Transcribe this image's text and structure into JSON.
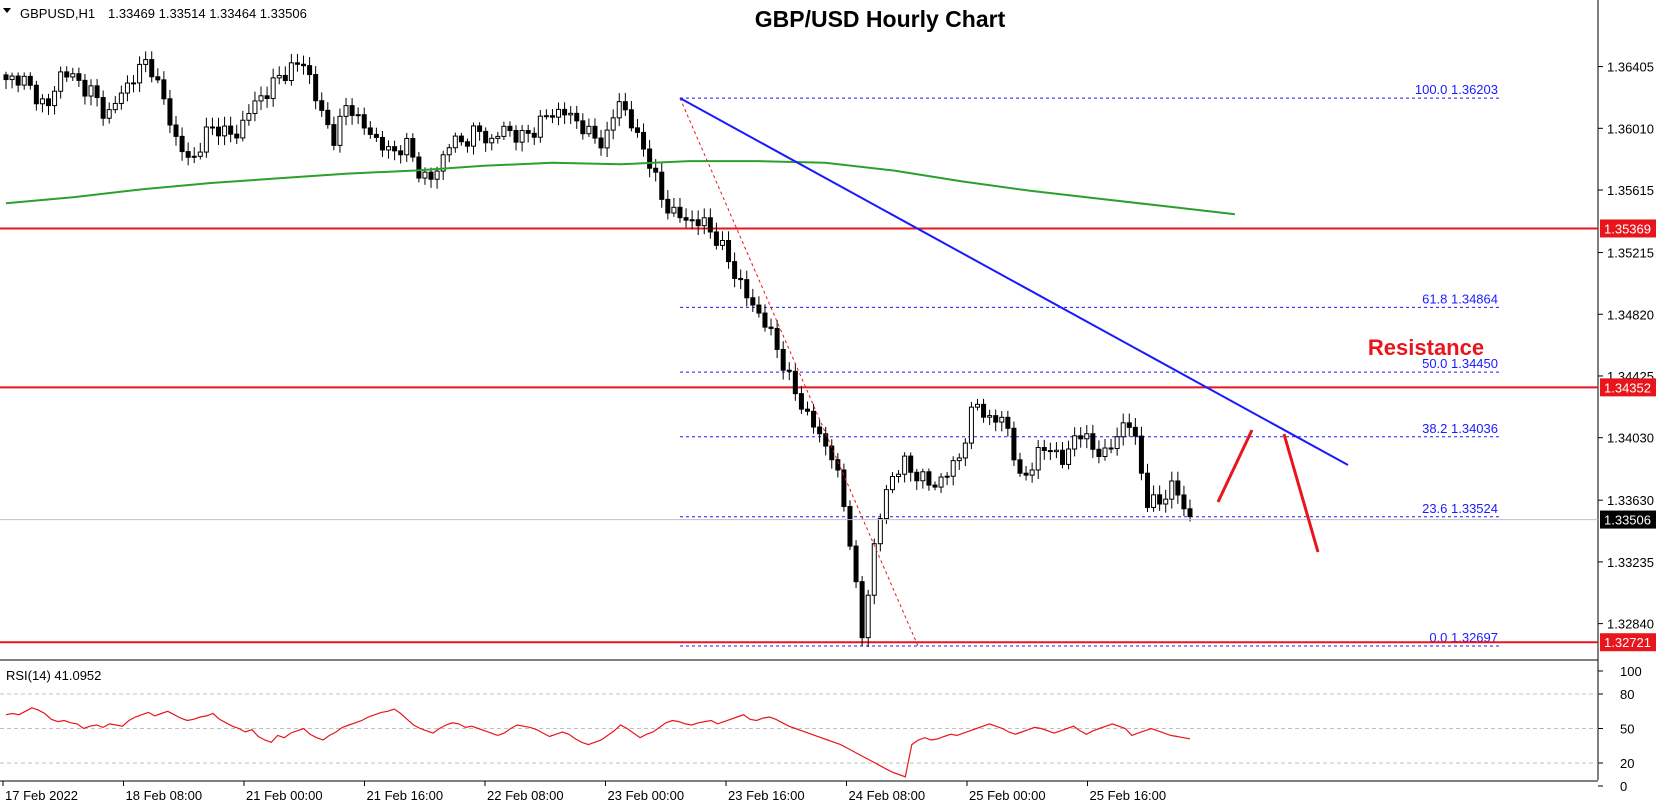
{
  "header": {
    "symbol": "GBPUSD,H1",
    "ohlc": "1.33469 1.33514 1.33464 1.33506",
    "title": "GBP/USD Hourly Chart"
  },
  "chart_data": [
    {
      "type": "candlestick",
      "title": "GBP/USD Hourly Chart",
      "symbol": "GBPUSD",
      "timeframe": "H1",
      "ohlc_last": {
        "open": 1.33469,
        "high": 1.33514,
        "low": 1.33464,
        "close": 1.33506
      },
      "ylim": [
        1.3262,
        1.3678
      ],
      "y_ticks": [
        "1.36405",
        "1.36010",
        "1.35615",
        "1.35215",
        "1.34820",
        "1.34425",
        "1.34030",
        "1.33630",
        "1.33235",
        "1.32840"
      ],
      "x_ticks": [
        "17 Feb 2022",
        "18 Feb 08:00",
        "21 Feb 00:00",
        "21 Feb 16:00",
        "22 Feb 08:00",
        "23 Feb 00:00",
        "23 Feb 16:00",
        "24 Feb 08:00",
        "25 Feb 00:00",
        "25 Feb 16:00"
      ],
      "close_path": [
        1.363,
        1.3635,
        1.3622,
        1.3615,
        1.364,
        1.363,
        1.3625,
        1.3608,
        1.3622,
        1.3635,
        1.3645,
        1.362,
        1.3592,
        1.3578,
        1.3598,
        1.3602,
        1.3594,
        1.3612,
        1.3622,
        1.3632,
        1.364,
        1.3643,
        1.3612,
        1.3595,
        1.3618,
        1.3602,
        1.3594,
        1.3584,
        1.3592,
        1.3572,
        1.3568,
        1.3592,
        1.3592,
        1.36,
        1.3592,
        1.3602,
        1.3594,
        1.36,
        1.361,
        1.3612,
        1.3606,
        1.3596,
        1.3592,
        1.362,
        1.36,
        1.3583,
        1.3555,
        1.3545,
        1.3542,
        1.354,
        1.3528,
        1.351,
        1.3492,
        1.348,
        1.3462,
        1.3438,
        1.342,
        1.3405,
        1.339,
        1.335,
        1.3275,
        1.3342,
        1.3378,
        1.3386,
        1.3378,
        1.3372,
        1.338,
        1.3394,
        1.3428,
        1.3412,
        1.3418,
        1.3376,
        1.3386,
        1.34,
        1.3386,
        1.3406,
        1.34,
        1.339,
        1.3408,
        1.3412,
        1.336,
        1.3364,
        1.3372,
        1.335
      ],
      "candle_count": 196,
      "ma": {
        "name": "",
        "color": "#2ca02c",
        "values": [
          1.3553,
          1.3557,
          1.3562,
          1.3566,
          1.3569,
          1.3572,
          1.3574,
          1.3577,
          1.3579,
          1.3578,
          1.358,
          1.358,
          1.3579,
          1.3574,
          1.3567,
          1.3561,
          1.3556,
          1.3551,
          1.3546
        ]
      },
      "horizontal_levels": [
        {
          "value": 1.35369,
          "color": "#e8161c"
        },
        {
          "value": 1.34352,
          "color": "#e8161c"
        },
        {
          "value": 1.32721,
          "color": "#e8161c"
        }
      ],
      "current_price": 1.33506,
      "trendline": {
        "from": 1.36203,
        "to": 1.33855,
        "color": "#1a1aff"
      },
      "fibonacci": {
        "high": 1.36203,
        "low": 1.32697,
        "color": "#1a1aff",
        "levels": [
          {
            "label": "100.0 1.36203",
            "value": 1.36203
          },
          {
            "label": "61.8 1.34864",
            "value": 1.34864
          },
          {
            "label": "50.0 1.34450",
            "value": 1.3445
          },
          {
            "label": "38.2 1.34036",
            "value": 1.34036
          },
          {
            "label": "23.6 1.33524",
            "value": 1.33524
          },
          {
            "label": "0.0 1.32697",
            "value": 1.32697
          }
        ]
      },
      "annotation": "Resistance",
      "projection_color": "#e8161c",
      "grid": false
    },
    {
      "type": "line",
      "indicator": "RSI(14)",
      "label": "RSI(14) 41.0952",
      "value": 41.0952,
      "ylim": [
        0,
        100
      ],
      "y_ticks": [
        "100",
        "80",
        "50",
        "20",
        "0"
      ],
      "levels": [
        80,
        50,
        20
      ],
      "color": "#e8161c",
      "values": [
        62,
        63,
        62,
        65,
        68,
        66,
        63,
        58,
        56,
        57,
        55,
        54,
        50,
        52,
        53,
        51,
        54,
        53,
        52,
        57,
        60,
        62,
        64,
        61,
        63,
        65,
        62,
        59,
        57,
        58,
        60,
        61,
        63,
        58,
        55,
        52,
        50,
        47,
        49,
        43,
        40,
        38,
        44,
        42,
        46,
        48,
        50,
        45,
        42,
        40,
        44,
        47,
        51,
        53,
        55,
        57,
        60,
        62,
        64,
        65,
        67,
        63,
        58,
        53,
        50,
        48,
        46,
        50,
        53,
        55,
        54,
        51,
        52,
        50,
        48,
        46,
        44,
        46,
        50,
        53,
        52,
        51,
        49,
        46,
        43,
        45,
        47,
        45,
        41,
        38,
        36,
        38,
        40,
        44,
        48,
        53,
        50,
        46,
        42,
        45,
        47,
        51,
        55,
        57,
        56,
        54,
        53,
        55,
        56,
        57,
        54,
        56,
        58,
        60,
        62,
        58,
        57,
        59,
        60,
        58,
        55,
        52,
        50,
        48,
        46,
        44,
        42,
        40,
        38,
        36,
        33,
        30,
        27,
        24,
        21,
        18,
        15,
        12,
        10,
        8,
        36,
        40,
        42,
        40,
        41,
        43,
        45,
        44,
        46,
        48,
        50,
        52,
        54,
        52,
        50,
        47,
        45,
        47,
        49,
        51,
        50,
        48,
        46,
        48,
        50,
        52,
        48,
        45,
        48,
        50,
        52,
        54,
        52,
        50,
        44,
        46,
        48,
        50,
        48,
        46,
        44,
        43,
        42,
        41
      ]
    }
  ]
}
